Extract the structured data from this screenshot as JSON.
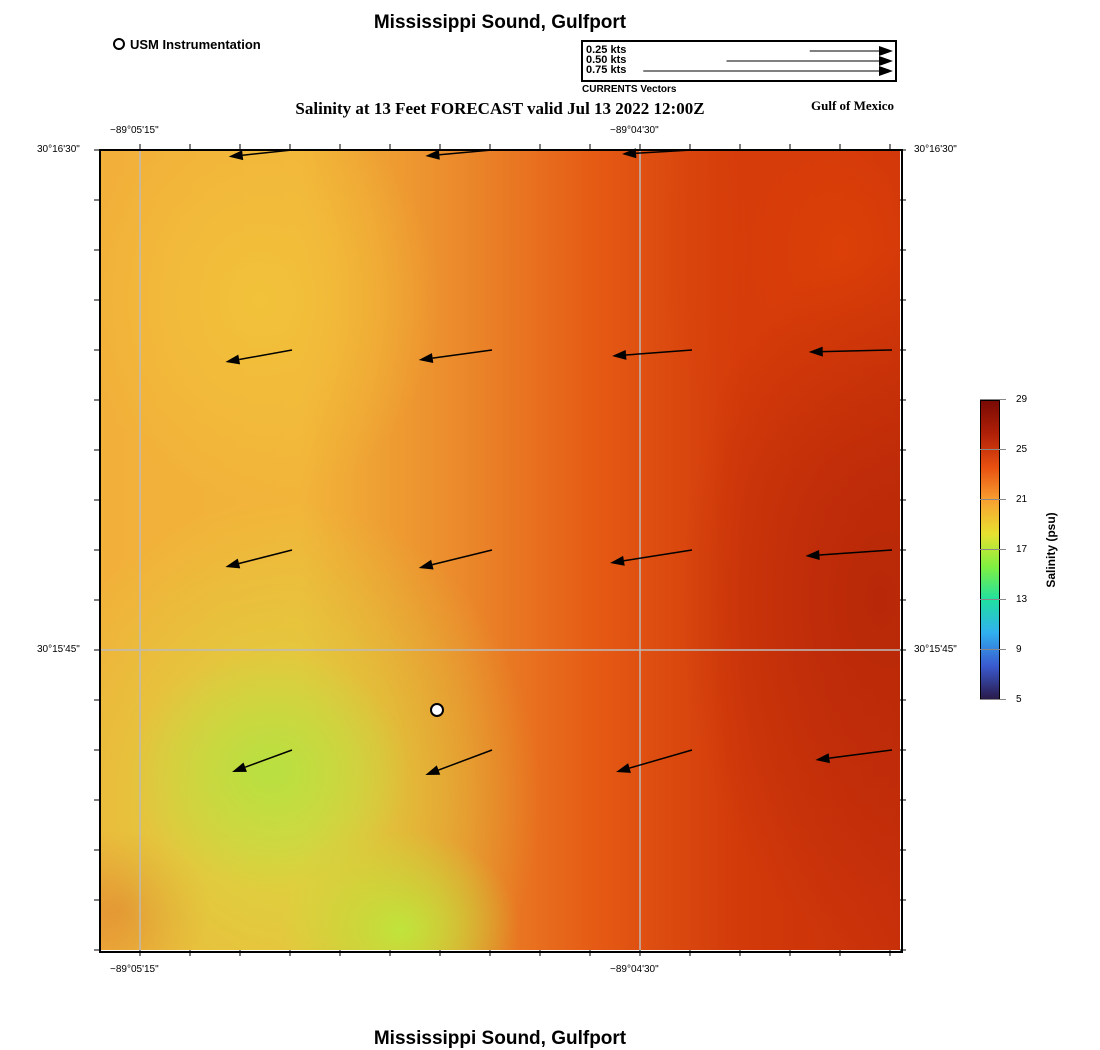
{
  "title_top": "Mississippi Sound, Gulfport",
  "title_bottom": "Mississippi Sound, Gulfport",
  "subtitle": "Salinity at 13 Feet FORECAST valid Jul 13 2022 12:00Z",
  "region_label": "Gulf of Mexico",
  "instrument_legend": "USM Instrumentation",
  "vector_legend": {
    "title": "CURRENTS Vectors",
    "entries": [
      {
        "label": "0.25 kts",
        "speed": 0.25
      },
      {
        "label": "0.50 kts",
        "speed": 0.5
      },
      {
        "label": "0.75 kts",
        "speed": 0.75
      }
    ]
  },
  "axes": {
    "lon_labels": [
      "−89°05'15\"",
      "−89°04'30\""
    ],
    "lat_labels": [
      "30°16'30\"",
      "30°15'45\""
    ]
  },
  "colorbar": {
    "label": "Salinity (psu)",
    "ticks": [
      "29",
      "25",
      "21",
      "17",
      "13",
      "9",
      "5"
    ],
    "min": 5,
    "max": 29,
    "colors": [
      "#2a1a4a",
      "#3a5ad0",
      "#30b0f0",
      "#20e0a0",
      "#80f040",
      "#e8e030",
      "#f8a030",
      "#e85010",
      "#b02008",
      "#7a0a04"
    ]
  },
  "vectors": [
    {
      "row": 0,
      "col": 0,
      "u": -0.19,
      "v": -0.02
    },
    {
      "row": 0,
      "col": 1,
      "u": -0.2,
      "v": -0.018
    },
    {
      "row": 0,
      "col": 2,
      "u": -0.21,
      "v": -0.012
    },
    {
      "row": 1,
      "col": 0,
      "u": -0.2,
      "v": -0.036
    },
    {
      "row": 1,
      "col": 1,
      "u": -0.22,
      "v": -0.03
    },
    {
      "row": 1,
      "col": 2,
      "u": -0.24,
      "v": -0.018
    },
    {
      "row": 1,
      "col": 3,
      "u": -0.25,
      "v": -0.006
    },
    {
      "row": 2,
      "col": 0,
      "u": -0.2,
      "v": -0.051
    },
    {
      "row": 2,
      "col": 1,
      "u": -0.22,
      "v": -0.054
    },
    {
      "row": 2,
      "col": 2,
      "u": -0.246,
      "v": -0.039
    },
    {
      "row": 2,
      "col": 3,
      "u": -0.26,
      "v": -0.018
    },
    {
      "row": 3,
      "col": 0,
      "u": -0.18,
      "v": -0.066
    },
    {
      "row": 3,
      "col": 1,
      "u": -0.2,
      "v": -0.075
    },
    {
      "row": 3,
      "col": 2,
      "u": -0.228,
      "v": -0.066
    },
    {
      "row": 3,
      "col": 3,
      "u": -0.23,
      "v": -0.03
    }
  ]
}
